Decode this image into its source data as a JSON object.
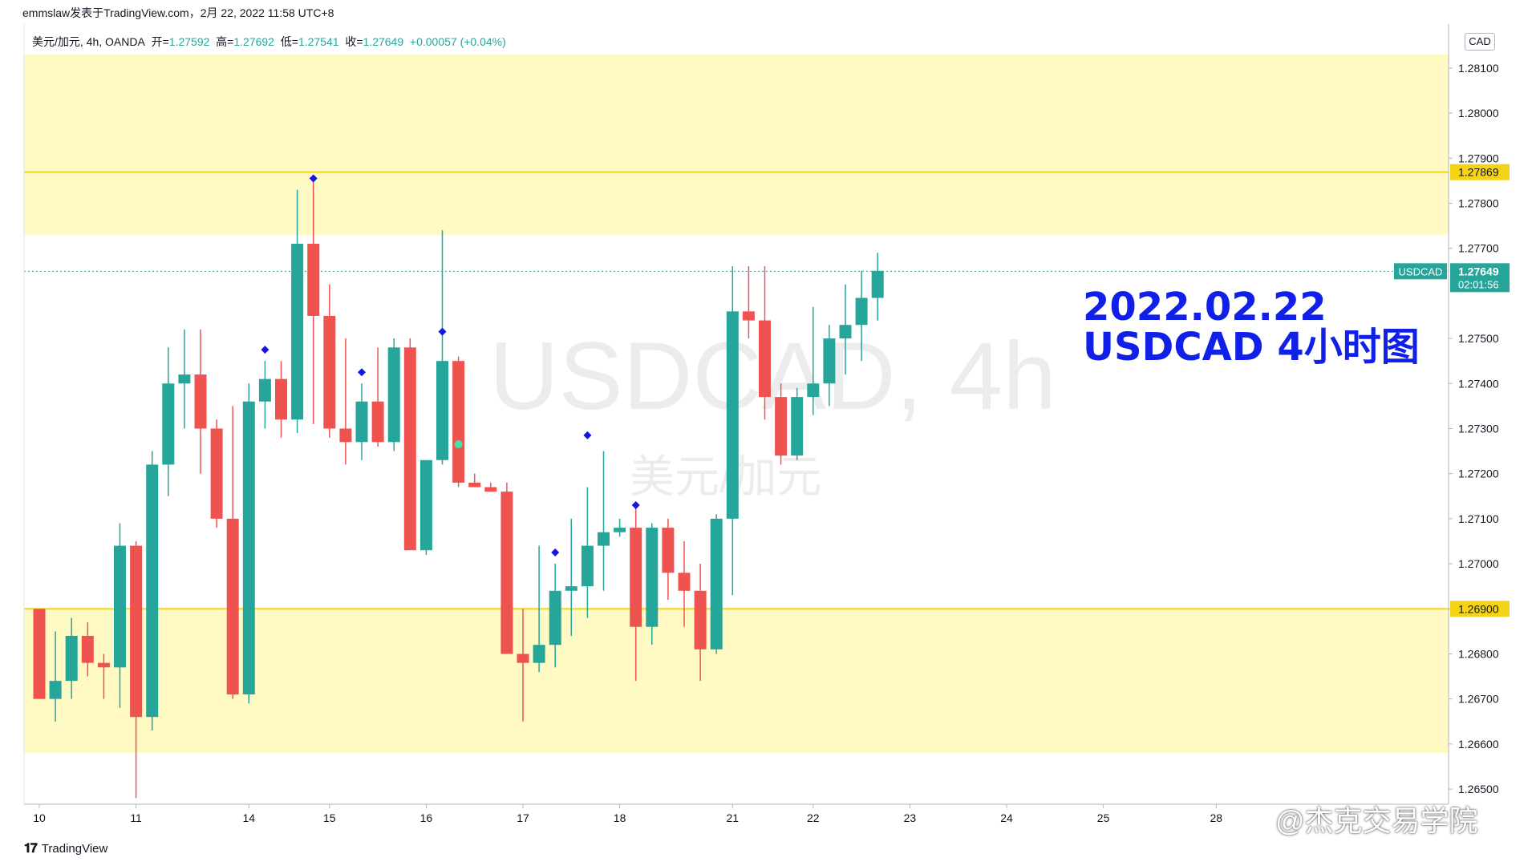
{
  "header": {
    "publisher": "emmslaw发表于TradingView.com，2月 22, 2022 11:58 UTC+8"
  },
  "legend": {
    "symbol_desc": "美元/加元, 4h, OANDA",
    "open_label": "开=",
    "open": "1.27592",
    "high_label": "高=",
    "high": "1.27692",
    "low_label": "低=",
    "low": "1.27541",
    "close_label": "收=",
    "close": "1.27649",
    "change": "+0.00057 (+0.04%)"
  },
  "currency_button": "CAD",
  "watermark": {
    "symbol": "USDCAD, 4h",
    "description": "美元/加元"
  },
  "annotation": {
    "line1": "2022.02.22",
    "line2": "USDCAD 4小时图"
  },
  "footer": {
    "brand": "TradingView",
    "weibo": "@杰克交易学院"
  },
  "colors": {
    "up": "#26a69a",
    "down": "#ef5350",
    "zone": "#fff9c4",
    "level": "#f5d316",
    "marker": "#1515e0",
    "annotation": "#1020e8"
  },
  "chart_data": {
    "type": "candlestick",
    "ylim": [
      1.2648,
      1.2813
    ],
    "yticks": [
      "1.26500",
      "1.26600",
      "1.26700",
      "1.26800",
      "1.26900",
      "1.27000",
      "1.27100",
      "1.27200",
      "1.27300",
      "1.27400",
      "1.27500",
      "1.27700",
      "1.27800",
      "1.27900",
      "1.28000",
      "1.28100"
    ],
    "xticks": [
      {
        "label": "10",
        "i": 0
      },
      {
        "label": "11",
        "i": 6
      },
      {
        "label": "14",
        "i": 13
      },
      {
        "label": "15",
        "i": 18
      },
      {
        "label": "16",
        "i": 24
      },
      {
        "label": "17",
        "i": 30
      },
      {
        "label": "18",
        "i": 36
      },
      {
        "label": "21",
        "i": 43
      },
      {
        "label": "22",
        "i": 48
      },
      {
        "label": "23",
        "i": 54
      },
      {
        "label": "24",
        "i": 60
      },
      {
        "label": "25",
        "i": 66
      },
      {
        "label": "28",
        "i": 73
      }
    ],
    "candles": [
      {
        "o": 1.269,
        "h": 1.269,
        "l": 1.267,
        "c": 1.267
      },
      {
        "o": 1.267,
        "h": 1.2685,
        "l": 1.2665,
        "c": 1.2674
      },
      {
        "o": 1.2674,
        "h": 1.2688,
        "l": 1.267,
        "c": 1.2684
      },
      {
        "o": 1.2684,
        "h": 1.2687,
        "l": 1.2675,
        "c": 1.2678
      },
      {
        "o": 1.2678,
        "h": 1.268,
        "l": 1.267,
        "c": 1.2677
      },
      {
        "o": 1.2677,
        "h": 1.2709,
        "l": 1.2668,
        "c": 1.2704
      },
      {
        "o": 1.2704,
        "h": 1.2705,
        "l": 1.2648,
        "c": 1.2666
      },
      {
        "o": 1.2666,
        "h": 1.2725,
        "l": 1.2663,
        "c": 1.2722
      },
      {
        "o": 1.2722,
        "h": 1.2748,
        "l": 1.2715,
        "c": 1.274
      },
      {
        "o": 1.274,
        "h": 1.2752,
        "l": 1.273,
        "c": 1.2742
      },
      {
        "o": 1.2742,
        "h": 1.2752,
        "l": 1.272,
        "c": 1.273
      },
      {
        "o": 1.273,
        "h": 1.2732,
        "l": 1.2708,
        "c": 1.271
      },
      {
        "o": 1.271,
        "h": 1.2735,
        "l": 1.267,
        "c": 1.2671
      },
      {
        "o": 1.2671,
        "h": 1.274,
        "l": 1.2669,
        "c": 1.2736
      },
      {
        "o": 1.2736,
        "h": 1.2745,
        "l": 1.273,
        "c": 1.2741
      },
      {
        "o": 1.2741,
        "h": 1.2745,
        "l": 1.2728,
        "c": 1.2732
      },
      {
        "o": 1.2732,
        "h": 1.2783,
        "l": 1.2729,
        "c": 1.2771
      },
      {
        "o": 1.2771,
        "h": 1.2786,
        "l": 1.2731,
        "c": 1.2755
      },
      {
        "o": 1.2755,
        "h": 1.2762,
        "l": 1.2728,
        "c": 1.273
      },
      {
        "o": 1.273,
        "h": 1.275,
        "l": 1.2722,
        "c": 1.2727
      },
      {
        "o": 1.2727,
        "h": 1.274,
        "l": 1.2723,
        "c": 1.2736
      },
      {
        "o": 1.2736,
        "h": 1.2748,
        "l": 1.2726,
        "c": 1.2727
      },
      {
        "o": 1.2727,
        "h": 1.275,
        "l": 1.2725,
        "c": 1.2748
      },
      {
        "o": 1.2748,
        "h": 1.275,
        "l": 1.2703,
        "c": 1.2703
      },
      {
        "o": 1.2703,
        "h": 1.2722,
        "l": 1.2702,
        "c": 1.2723
      },
      {
        "o": 1.2723,
        "h": 1.2774,
        "l": 1.2722,
        "c": 1.2745
      },
      {
        "o": 1.2745,
        "h": 1.2746,
        "l": 1.2717,
        "c": 1.2718
      },
      {
        "o": 1.2718,
        "h": 1.272,
        "l": 1.2717,
        "c": 1.2717
      },
      {
        "o": 1.2717,
        "h": 1.2718,
        "l": 1.2716,
        "c": 1.2716
      },
      {
        "o": 1.2716,
        "h": 1.2718,
        "l": 1.268,
        "c": 1.268
      },
      {
        "o": 1.268,
        "h": 1.269,
        "l": 1.2665,
        "c": 1.2678
      },
      {
        "o": 1.2678,
        "h": 1.2704,
        "l": 1.2676,
        "c": 1.2682
      },
      {
        "o": 1.2682,
        "h": 1.27,
        "l": 1.2677,
        "c": 1.2694
      },
      {
        "o": 1.2694,
        "h": 1.271,
        "l": 1.2684,
        "c": 1.2695
      },
      {
        "o": 1.2695,
        "h": 1.2717,
        "l": 1.2688,
        "c": 1.2704
      },
      {
        "o": 1.2704,
        "h": 1.2725,
        "l": 1.2694,
        "c": 1.2707
      },
      {
        "o": 1.2707,
        "h": 1.271,
        "l": 1.2706,
        "c": 1.2708
      },
      {
        "o": 1.2708,
        "h": 1.2713,
        "l": 1.2674,
        "c": 1.2686
      },
      {
        "o": 1.2686,
        "h": 1.2709,
        "l": 1.2682,
        "c": 1.2708
      },
      {
        "o": 1.2708,
        "h": 1.271,
        "l": 1.2692,
        "c": 1.2698
      },
      {
        "o": 1.2698,
        "h": 1.2705,
        "l": 1.2686,
        "c": 1.2694
      },
      {
        "o": 1.2694,
        "h": 1.27,
        "l": 1.2674,
        "c": 1.2681
      },
      {
        "o": 1.2681,
        "h": 1.2711,
        "l": 1.268,
        "c": 1.271
      },
      {
        "o": 1.271,
        "h": 1.2766,
        "l": 1.2693,
        "c": 1.2756
      },
      {
        "o": 1.2756,
        "h": 1.2766,
        "l": 1.275,
        "c": 1.2754
      },
      {
        "o": 1.2754,
        "h": 1.2766,
        "l": 1.2732,
        "c": 1.2737
      },
      {
        "o": 1.2737,
        "h": 1.274,
        "l": 1.2722,
        "c": 1.2724
      },
      {
        "o": 1.2724,
        "h": 1.2739,
        "l": 1.2723,
        "c": 1.2737
      },
      {
        "o": 1.2737,
        "h": 1.2757,
        "l": 1.2733,
        "c": 1.274
      },
      {
        "o": 1.274,
        "h": 1.2753,
        "l": 1.2735,
        "c": 1.275
      },
      {
        "o": 1.275,
        "h": 1.2762,
        "l": 1.2742,
        "c": 1.2753
      },
      {
        "o": 1.2753,
        "h": 1.2765,
        "l": 1.2745,
        "c": 1.2759
      },
      {
        "o": 1.2759,
        "h": 1.2769,
        "l": 1.2754,
        "c": 1.2765
      }
    ],
    "markers_above": [
      {
        "i": 17,
        "price": 1.27855
      },
      {
        "i": 14,
        "price": 1.27475
      },
      {
        "i": 20,
        "price": 1.27425
      },
      {
        "i": 25,
        "price": 1.27515
      },
      {
        "i": 34,
        "price": 1.27285
      },
      {
        "i": 37,
        "price": 1.2713
      },
      {
        "i": 32,
        "price": 1.27025
      }
    ],
    "markers_dot": [
      {
        "i": 26,
        "price": 1.27265
      }
    ],
    "zones": [
      {
        "from": 1.2773,
        "to": 1.2813
      },
      {
        "from": 1.2658,
        "to": 1.269
      }
    ],
    "level_lines": [
      {
        "price": 1.27869,
        "label": "1.27869"
      },
      {
        "price": 1.269,
        "label": "1.26900"
      }
    ],
    "last_price": {
      "price": 1.27649,
      "label": "1.27649",
      "symbol": "USDCAD",
      "countdown": "02:01:56"
    }
  }
}
